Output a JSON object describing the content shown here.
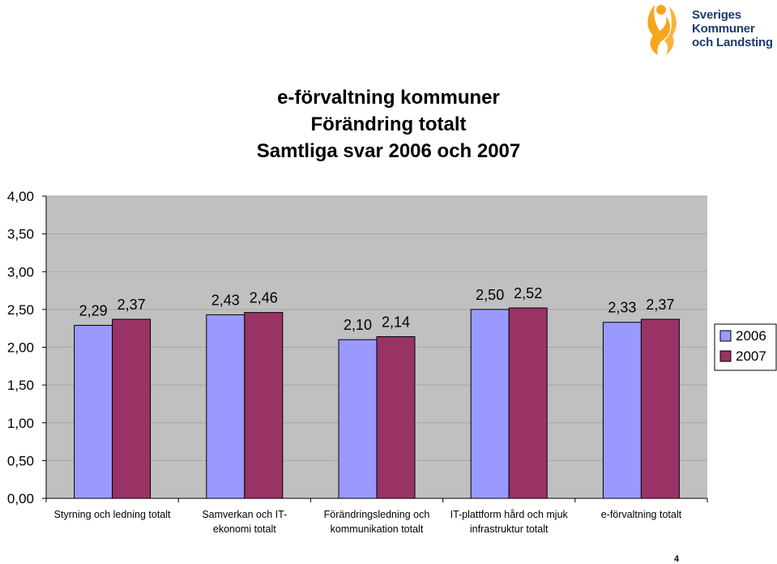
{
  "header": {
    "logo": {
      "lines": [
        "Sveriges",
        "Kommuner",
        "och Landsting"
      ],
      "colors": {
        "orange": "#f7a51c",
        "blue": "#1d3a6e"
      }
    }
  },
  "titles": {
    "line1": "e-förvaltning kommuner",
    "line2": "Förändring totalt",
    "line3": "Samtliga svar 2006 och 2007"
  },
  "chart_data": {
    "type": "bar",
    "categories": [
      [
        "Styrning och ledning totalt"
      ],
      [
        "Samverkan och IT-",
        "ekonomi totalt"
      ],
      [
        "Förändringsledning och",
        "kommunikation totalt"
      ],
      [
        "IT-plattform hård och mjuk",
        "infrastruktur totalt"
      ],
      [
        "e-förvaltning totalt"
      ]
    ],
    "series": [
      {
        "name": "2006",
        "color": "#9999ff",
        "values": [
          2.29,
          2.43,
          2.1,
          2.5,
          2.33
        ],
        "labels": [
          "2,29",
          "2,43",
          "2,10",
          "2,50",
          "2,33"
        ]
      },
      {
        "name": "2007",
        "color": "#993366",
        "values": [
          2.37,
          2.46,
          2.14,
          2.52,
          2.37
        ],
        "labels": [
          "2,37",
          "2,46",
          "2,14",
          "2,52",
          "2,37"
        ]
      }
    ],
    "ylim": [
      0,
      4
    ],
    "yticks": [
      "0,00",
      "0,50",
      "1,00",
      "1,50",
      "2,00",
      "2,50",
      "3,00",
      "3,50",
      "4,00"
    ],
    "grid": true,
    "plot_background": "#c0c0c0",
    "legend_position": "right",
    "title": "",
    "xlabel": "",
    "ylabel": ""
  },
  "footer": {
    "page_number": "4"
  }
}
